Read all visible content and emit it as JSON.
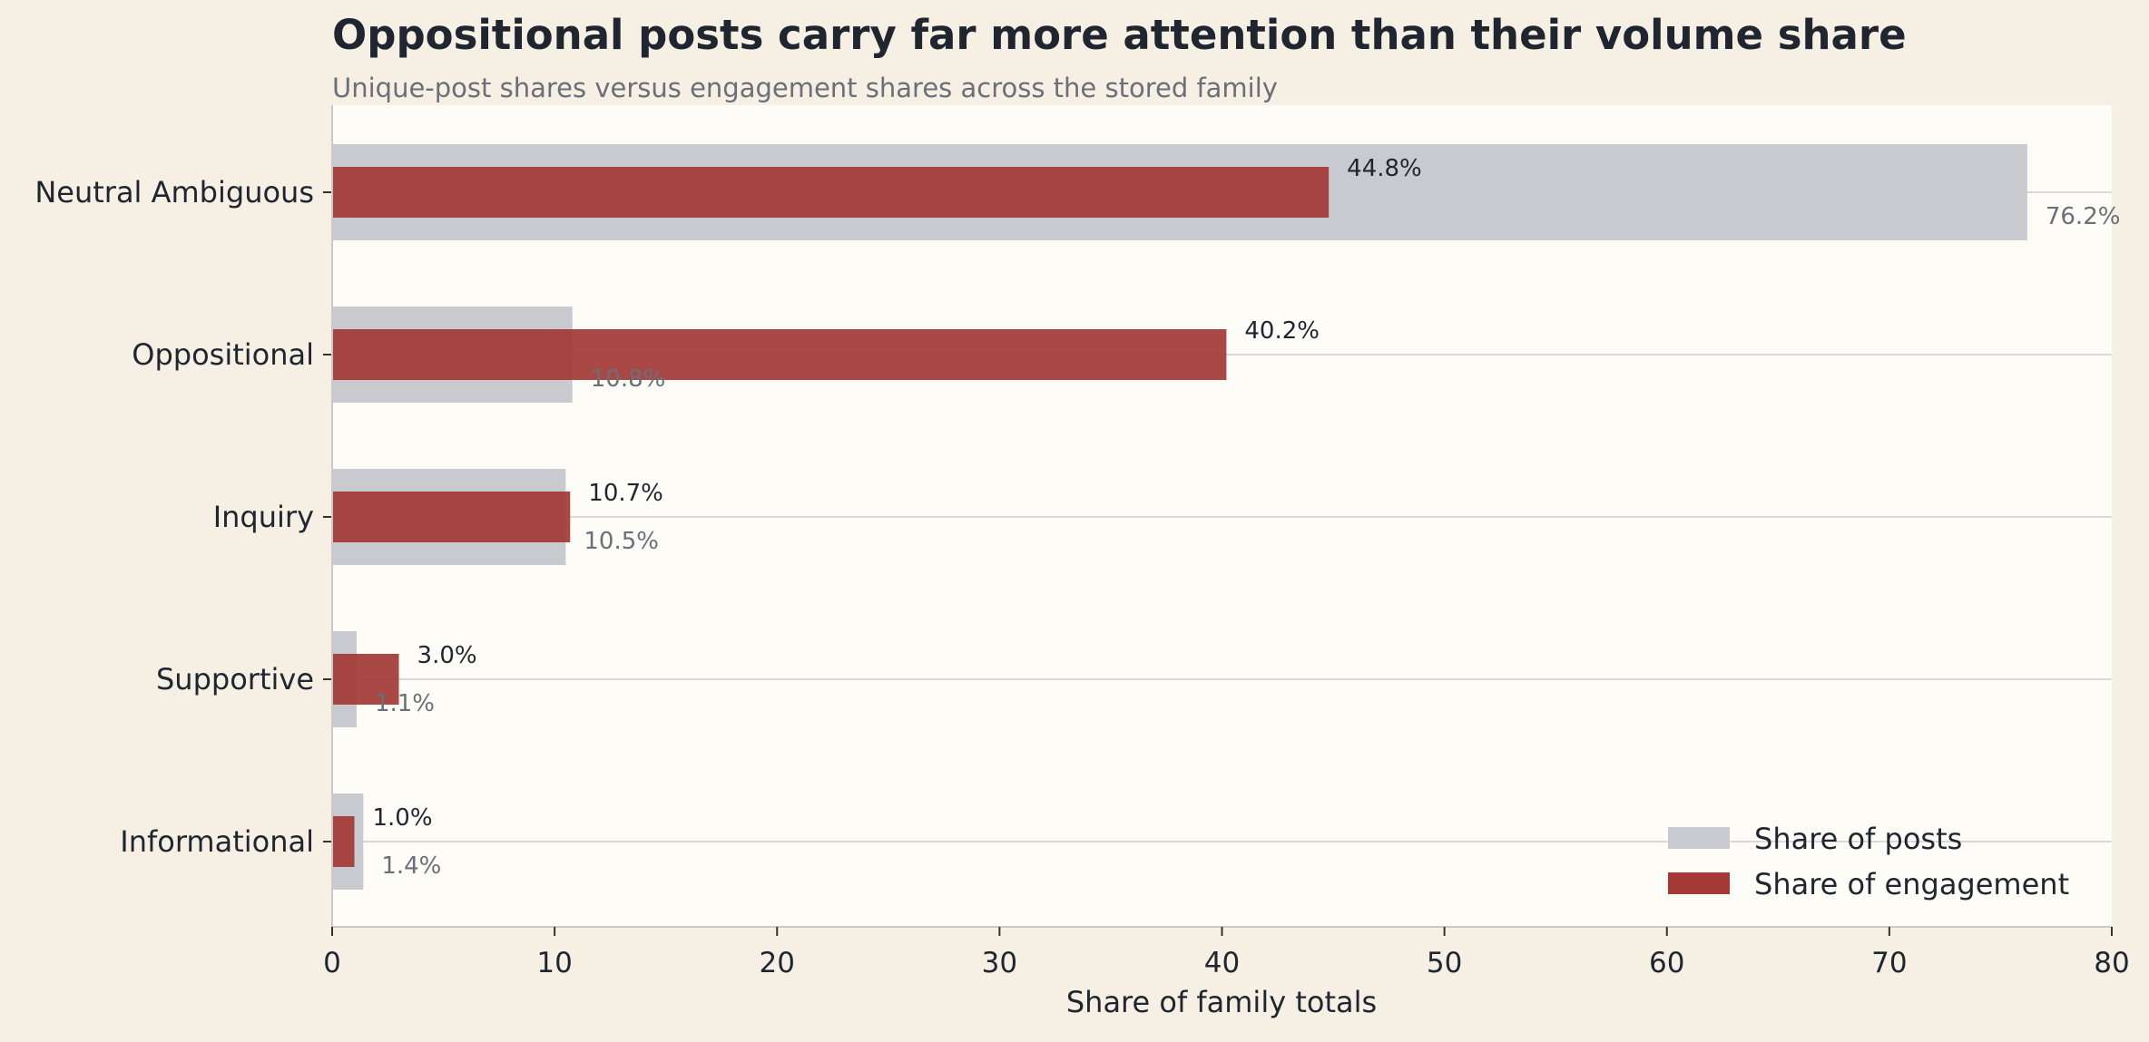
{
  "chart_data": {
    "type": "bar",
    "orientation": "horizontal",
    "title": "Oppositional posts carry far more attention than their volume share",
    "subtitle": "Unique-post shares versus engagement shares across the stored family",
    "xlabel": "Share of family totals",
    "ylabel": "",
    "xlim": [
      0,
      80
    ],
    "xticks": [
      0,
      10,
      20,
      30,
      40,
      50,
      60,
      70,
      80
    ],
    "grid": "horizontal lines at categories",
    "legend_position": "bottom-right",
    "categories": [
      "Neutral Ambiguous",
      "Oppositional",
      "Inquiry",
      "Supportive",
      "Informational"
    ],
    "series": [
      {
        "name": "Share of posts",
        "color": "#c8cacf",
        "values": [
          76.2,
          10.8,
          10.5,
          1.1,
          1.4
        ],
        "labels": [
          "76.2%",
          "10.8%",
          "10.5%",
          "1.1%",
          "1.4%"
        ]
      },
      {
        "name": "Share of engagement",
        "color": "#a33a36",
        "values": [
          44.8,
          40.2,
          10.7,
          3.0,
          1.0
        ],
        "labels": [
          "44.8%",
          "40.2%",
          "10.7%",
          "3.0%",
          "1.0%"
        ]
      }
    ]
  }
}
